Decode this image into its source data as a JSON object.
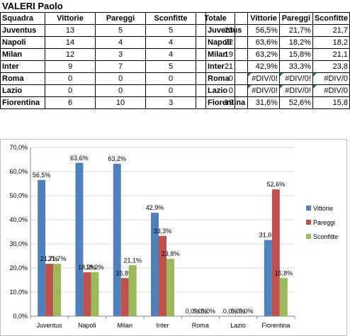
{
  "sheet": {
    "title": "VALERI Paolo",
    "left_headers": [
      "Squadra",
      "Vittorie",
      "Pareggi",
      "Sconfitte",
      "Totale"
    ],
    "rows": [
      {
        "team": "Juventus",
        "vittorie": "13",
        "pareggi": "5",
        "sconfitte": "5",
        "totale": "23"
      },
      {
        "team": "Napoli",
        "vittorie": "14",
        "pareggi": "4",
        "sconfitte": "4",
        "totale": "22"
      },
      {
        "team": "Milan",
        "vittorie": "12",
        "pareggi": "3",
        "sconfitte": "4",
        "totale": "19"
      },
      {
        "team": "Inter",
        "vittorie": "9",
        "pareggi": "7",
        "sconfitte": "5",
        "totale": "21"
      },
      {
        "team": "Roma",
        "vittorie": "0",
        "pareggi": "0",
        "sconfitte": "0",
        "totale": "0"
      },
      {
        "team": "Lazio",
        "vittorie": "0",
        "pareggi": "0",
        "sconfitte": "0",
        "totale": "0"
      },
      {
        "team": "Fiorentina",
        "vittorie": "6",
        "pareggi": "10",
        "sconfitte": "3",
        "totale": "19"
      }
    ],
    "right_headers": [
      "",
      "Vittorie",
      "Pareggi",
      "Sconfitte"
    ],
    "pct_rows": [
      {
        "team": "Juventus",
        "v": "56,5%",
        "p": "21,7%",
        "s": "21,7"
      },
      {
        "team": "Napoli",
        "v": "63,6%",
        "p": "18,2%",
        "s": "18,2"
      },
      {
        "team": "Milan",
        "v": "63,2%",
        "p": "15,8%",
        "s": "21,1"
      },
      {
        "team": "Inter",
        "v": "42,9%",
        "p": "33,3%",
        "s": "23,8"
      },
      {
        "team": "Roma",
        "v": "#DIV/0!",
        "p": "#DIV/0!",
        "s": "#DIV/0"
      },
      {
        "team": "Lazio",
        "v": "#DIV/0!",
        "p": "#DIV/0!",
        "s": "#DIV/0"
      },
      {
        "team": "Fiorentina",
        "v": "31,6%",
        "p": "52,6%",
        "s": "15,8"
      }
    ]
  },
  "chart_data": {
    "type": "bar",
    "categories": [
      "Juventus",
      "Napoli",
      "Milan",
      "Inter",
      "Roma",
      "Lazio",
      "Fiorentina"
    ],
    "series": [
      {
        "name": "Vittorie",
        "color": "#4f81bd",
        "values": [
          56.5,
          63.6,
          63.2,
          42.9,
          0,
          0,
          31.6
        ],
        "labels": [
          "56,5%",
          "63,6%",
          "63,2%",
          "42,9%",
          "0,0%",
          "0,0%",
          "31,6%"
        ]
      },
      {
        "name": "Pareggi",
        "color": "#c0504d",
        "values": [
          21.7,
          18.2,
          15.8,
          33.3,
          0,
          0,
          52.6
        ],
        "labels": [
          "21,7%",
          "18,2%",
          "15,8%",
          "33,3%",
          "0,0%",
          "0,0%",
          "52,6%"
        ]
      },
      {
        "name": "Sconfitte",
        "color": "#9bbb59",
        "values": [
          21.7,
          18.2,
          21.1,
          23.8,
          0,
          0,
          15.8
        ],
        "labels": [
          "21,7%",
          "18,2%",
          "21,1%",
          "23,8%",
          "0,0%",
          "0,0%",
          "15,8%"
        ]
      }
    ],
    "ylim": [
      0,
      70
    ],
    "yticks": [
      "0,0%",
      "10,0%",
      "20,0%",
      "30,0%",
      "40,0%",
      "50,0%",
      "60,0%",
      "70,0%"
    ],
    "grid": true,
    "legend": "right"
  }
}
